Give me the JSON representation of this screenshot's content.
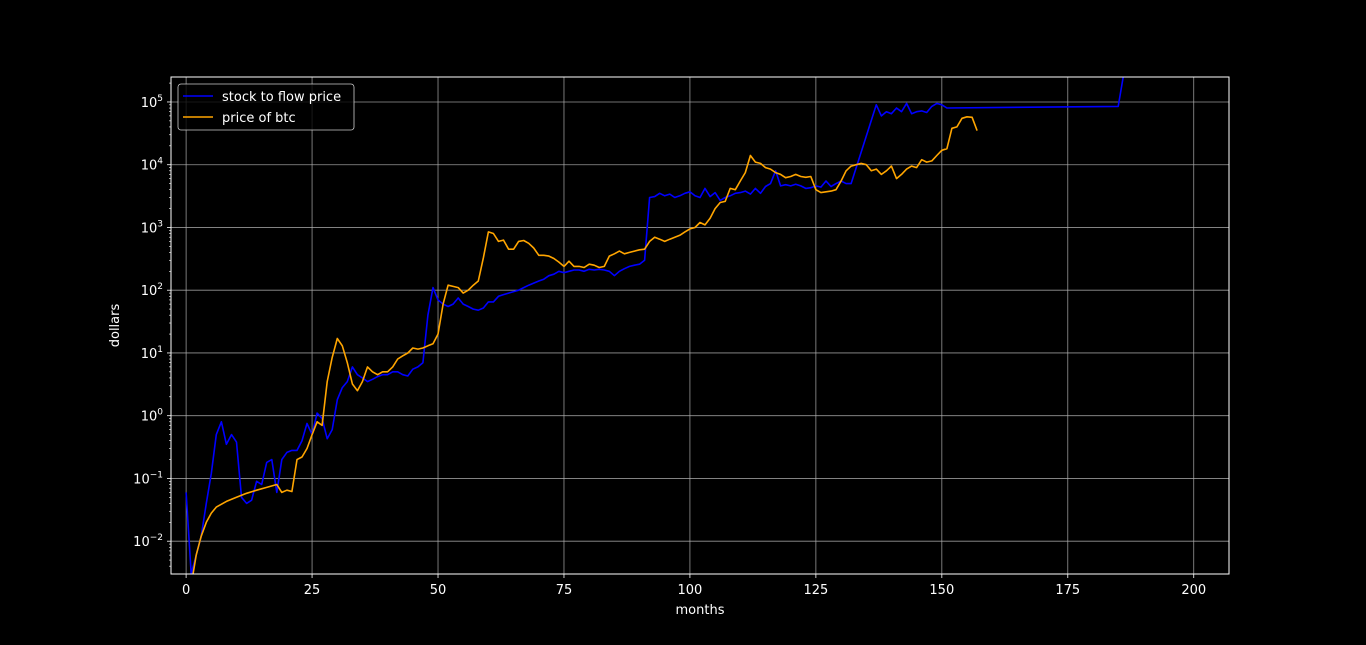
{
  "chart_data": {
    "type": "line",
    "title": "",
    "xlabel": "months",
    "ylabel": "dollars",
    "xlim": [
      -3,
      207
    ],
    "ylim": [
      0.003,
      250000
    ],
    "yscale": "log",
    "grid": true,
    "legend_position": "upper-left",
    "x_ticks": [
      0,
      25,
      50,
      75,
      100,
      125,
      150,
      175,
      200
    ],
    "x_tick_labels": [
      "0",
      "25",
      "50",
      "75",
      "100",
      "125",
      "150",
      "175",
      "200"
    ],
    "y_ticks": [
      0.01,
      0.1,
      1,
      10,
      100,
      1000,
      10000,
      100000
    ],
    "y_tick_labels": [
      {
        "base": "10",
        "exp": "−2"
      },
      {
        "base": "10",
        "exp": "−1"
      },
      {
        "base": "10",
        "exp": "0"
      },
      {
        "base": "10",
        "exp": "1"
      },
      {
        "base": "10",
        "exp": "2"
      },
      {
        "base": "10",
        "exp": "3"
      },
      {
        "base": "10",
        "exp": "4"
      },
      {
        "base": "10",
        "exp": "5"
      }
    ],
    "series": [
      {
        "name": "stock to flow price",
        "color": "#0000ff",
        "points": [
          [
            0,
            0.06
          ],
          [
            1,
            0.003
          ],
          [
            2,
            0.006
          ],
          [
            3,
            0.012
          ],
          [
            4,
            0.04
          ],
          [
            5,
            0.12
          ],
          [
            6,
            0.5
          ],
          [
            7,
            0.8
          ],
          [
            8,
            0.35
          ],
          [
            9,
            0.5
          ],
          [
            10,
            0.38
          ],
          [
            11,
            0.05
          ],
          [
            12,
            0.04
          ],
          [
            13,
            0.045
          ],
          [
            14,
            0.09
          ],
          [
            15,
            0.08
          ],
          [
            16,
            0.18
          ],
          [
            17,
            0.2
          ],
          [
            18,
            0.06
          ],
          [
            19,
            0.2
          ],
          [
            20,
            0.26
          ],
          [
            21,
            0.28
          ],
          [
            22,
            0.28
          ],
          [
            23,
            0.4
          ],
          [
            24,
            0.75
          ],
          [
            25,
            0.5
          ],
          [
            26,
            1.1
          ],
          [
            27,
            0.9
          ],
          [
            28,
            0.43
          ],
          [
            29,
            0.6
          ],
          [
            30,
            1.8
          ],
          [
            31,
            2.8
          ],
          [
            32,
            3.5
          ],
          [
            33,
            6
          ],
          [
            34,
            4.5
          ],
          [
            35,
            4
          ],
          [
            36,
            3.5
          ],
          [
            37,
            3.8
          ],
          [
            38,
            4.2
          ],
          [
            39,
            4.5
          ],
          [
            40,
            4.5
          ],
          [
            41,
            5
          ],
          [
            42,
            5
          ],
          [
            43,
            4.5
          ],
          [
            44,
            4.3
          ],
          [
            45,
            5.5
          ],
          [
            46,
            6
          ],
          [
            47,
            7
          ],
          [
            48,
            40
          ],
          [
            49,
            110
          ],
          [
            50,
            70
          ],
          [
            51,
            60
          ],
          [
            52,
            55
          ],
          [
            53,
            60
          ],
          [
            54,
            75
          ],
          [
            55,
            60
          ],
          [
            56,
            55
          ],
          [
            57,
            50
          ],
          [
            58,
            48
          ],
          [
            59,
            52
          ],
          [
            60,
            65
          ],
          [
            61,
            65
          ],
          [
            62,
            80
          ],
          [
            63,
            85
          ],
          [
            64,
            90
          ],
          [
            65,
            95
          ],
          [
            66,
            100
          ],
          [
            67,
            110
          ],
          [
            68,
            120
          ],
          [
            69,
            130
          ],
          [
            70,
            140
          ],
          [
            71,
            150
          ],
          [
            72,
            170
          ],
          [
            73,
            180
          ],
          [
            74,
            200
          ],
          [
            75,
            190
          ],
          [
            76,
            200
          ],
          [
            77,
            210
          ],
          [
            78,
            210
          ],
          [
            79,
            200
          ],
          [
            80,
            215
          ],
          [
            81,
            210
          ],
          [
            82,
            215
          ],
          [
            83,
            210
          ],
          [
            84,
            200
          ],
          [
            85,
            170
          ],
          [
            86,
            200
          ],
          [
            87,
            220
          ],
          [
            88,
            240
          ],
          [
            89,
            250
          ],
          [
            90,
            260
          ],
          [
            91,
            300
          ],
          [
            92,
            3000
          ],
          [
            93,
            3100
          ],
          [
            94,
            3500
          ],
          [
            95,
            3200
          ],
          [
            96,
            3400
          ],
          [
            97,
            3000
          ],
          [
            98,
            3200
          ],
          [
            99,
            3500
          ],
          [
            100,
            3700
          ],
          [
            101,
            3200
          ],
          [
            102,
            3000
          ],
          [
            103,
            4200
          ],
          [
            104,
            3100
          ],
          [
            105,
            3600
          ],
          [
            106,
            2700
          ],
          [
            107,
            3000
          ],
          [
            108,
            3200
          ],
          [
            109,
            3500
          ],
          [
            110,
            3600
          ],
          [
            111,
            3800
          ],
          [
            112,
            3400
          ],
          [
            113,
            4200
          ],
          [
            114,
            3500
          ],
          [
            115,
            4500
          ],
          [
            116,
            5000
          ],
          [
            117,
            8000
          ],
          [
            118,
            4600
          ],
          [
            119,
            4800
          ],
          [
            120,
            4600
          ],
          [
            121,
            4900
          ],
          [
            122,
            4600
          ],
          [
            123,
            4200
          ],
          [
            124,
            4300
          ],
          [
            125,
            4600
          ],
          [
            126,
            4400
          ],
          [
            127,
            5500
          ],
          [
            128,
            4500
          ],
          [
            129,
            5000
          ],
          [
            130,
            5500
          ],
          [
            131,
            5000
          ],
          [
            132,
            5000
          ],
          [
            137,
            90000
          ],
          [
            138,
            60000
          ],
          [
            139,
            70000
          ],
          [
            140,
            65000
          ],
          [
            141,
            80000
          ],
          [
            142,
            70000
          ],
          [
            143,
            95000
          ],
          [
            144,
            65000
          ],
          [
            145,
            70000
          ],
          [
            146,
            72000
          ],
          [
            147,
            68000
          ],
          [
            148,
            85000
          ],
          [
            149,
            95000
          ],
          [
            150,
            90000
          ],
          [
            151,
            80000
          ],
          [
            185,
            85000
          ],
          [
            186,
            250000
          ]
        ]
      },
      {
        "name": "price of btc",
        "color": "#ffa500",
        "points": [
          [
            1,
            0.002
          ],
          [
            2,
            0.006
          ],
          [
            3,
            0.012
          ],
          [
            4,
            0.02
          ],
          [
            5,
            0.028
          ],
          [
            6,
            0.035
          ],
          [
            8,
            0.043
          ],
          [
            10,
            0.05
          ],
          [
            12,
            0.058
          ],
          [
            14,
            0.065
          ],
          [
            16,
            0.072
          ],
          [
            18,
            0.08
          ],
          [
            19,
            0.06
          ],
          [
            20,
            0.065
          ],
          [
            21,
            0.062
          ],
          [
            22,
            0.2
          ],
          [
            23,
            0.22
          ],
          [
            24,
            0.3
          ],
          [
            25,
            0.5
          ],
          [
            26,
            0.8
          ],
          [
            27,
            0.7
          ],
          [
            28,
            3.5
          ],
          [
            29,
            8.5
          ],
          [
            30,
            17
          ],
          [
            31,
            13
          ],
          [
            32,
            7
          ],
          [
            33,
            3.2
          ],
          [
            34,
            2.5
          ],
          [
            35,
            3.5
          ],
          [
            36,
            6
          ],
          [
            37,
            5
          ],
          [
            38,
            4.5
          ],
          [
            39,
            5
          ],
          [
            40,
            5
          ],
          [
            41,
            6
          ],
          [
            42,
            8
          ],
          [
            43,
            9
          ],
          [
            44,
            10
          ],
          [
            45,
            12
          ],
          [
            46,
            11.5
          ],
          [
            47,
            12
          ],
          [
            48,
            13
          ],
          [
            49,
            14
          ],
          [
            50,
            20
          ],
          [
            51,
            60
          ],
          [
            52,
            120
          ],
          [
            53,
            115
          ],
          [
            54,
            110
          ],
          [
            55,
            90
          ],
          [
            56,
            100
          ],
          [
            57,
            120
          ],
          [
            58,
            140
          ],
          [
            59,
            330
          ],
          [
            60,
            850
          ],
          [
            61,
            800
          ],
          [
            62,
            600
          ],
          [
            63,
            630
          ],
          [
            64,
            450
          ],
          [
            65,
            450
          ],
          [
            66,
            600
          ],
          [
            67,
            620
          ],
          [
            68,
            560
          ],
          [
            69,
            470
          ],
          [
            70,
            360
          ],
          [
            71,
            360
          ],
          [
            72,
            350
          ],
          [
            73,
            320
          ],
          [
            74,
            280
          ],
          [
            75,
            240
          ],
          [
            76,
            290
          ],
          [
            77,
            240
          ],
          [
            78,
            240
          ],
          [
            79,
            230
          ],
          [
            80,
            260
          ],
          [
            81,
            250
          ],
          [
            82,
            230
          ],
          [
            83,
            240
          ],
          [
            84,
            350
          ],
          [
            85,
            380
          ],
          [
            86,
            420
          ],
          [
            87,
            380
          ],
          [
            88,
            400
          ],
          [
            89,
            420
          ],
          [
            90,
            440
          ],
          [
            91,
            450
          ],
          [
            92,
            600
          ],
          [
            93,
            700
          ],
          [
            94,
            650
          ],
          [
            95,
            600
          ],
          [
            96,
            650
          ],
          [
            97,
            700
          ],
          [
            98,
            750
          ],
          [
            99,
            850
          ],
          [
            100,
            950
          ],
          [
            101,
            1000
          ],
          [
            102,
            1200
          ],
          [
            103,
            1100
          ],
          [
            104,
            1400
          ],
          [
            105,
            2000
          ],
          [
            106,
            2500
          ],
          [
            107,
            2600
          ],
          [
            108,
            4200
          ],
          [
            109,
            4000
          ],
          [
            110,
            5500
          ],
          [
            111,
            7500
          ],
          [
            112,
            14000
          ],
          [
            113,
            11000
          ],
          [
            114,
            10500
          ],
          [
            115,
            9000
          ],
          [
            116,
            8500
          ],
          [
            117,
            7500
          ],
          [
            118,
            7000
          ],
          [
            119,
            6200
          ],
          [
            120,
            6500
          ],
          [
            121,
            7000
          ],
          [
            122,
            6500
          ],
          [
            123,
            6300
          ],
          [
            124,
            6500
          ],
          [
            125,
            4000
          ],
          [
            126,
            3600
          ],
          [
            127,
            3700
          ],
          [
            128,
            3800
          ],
          [
            129,
            4000
          ],
          [
            130,
            5500
          ],
          [
            131,
            8000
          ],
          [
            132,
            9500
          ],
          [
            133,
            10000
          ],
          [
            134,
            10500
          ],
          [
            135,
            10000
          ],
          [
            136,
            8000
          ],
          [
            137,
            8500
          ],
          [
            138,
            7000
          ],
          [
            139,
            8000
          ],
          [
            140,
            9500
          ],
          [
            141,
            6000
          ],
          [
            142,
            7000
          ],
          [
            143,
            8500
          ],
          [
            144,
            9500
          ],
          [
            145,
            9000
          ],
          [
            146,
            12000
          ],
          [
            147,
            11000
          ],
          [
            148,
            11500
          ],
          [
            149,
            14000
          ],
          [
            150,
            17000
          ],
          [
            151,
            18000
          ],
          [
            152,
            38000
          ],
          [
            153,
            40000
          ],
          [
            154,
            55000
          ],
          [
            155,
            58000
          ],
          [
            156,
            57000
          ],
          [
            157,
            35000
          ]
        ]
      }
    ]
  }
}
